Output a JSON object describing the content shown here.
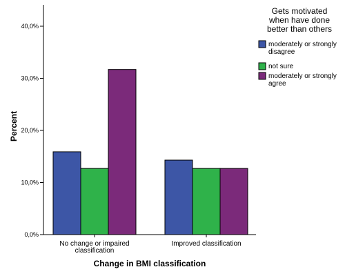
{
  "chart_data": {
    "type": "bar",
    "xlabel": "Change in BMI classification",
    "ylabel": "Percent",
    "ylim": [
      0,
      44
    ],
    "yticks": [
      {
        "value": 0,
        "label": "0,0%"
      },
      {
        "value": 10,
        "label": "10,0%"
      },
      {
        "value": 20,
        "label": "20,0%"
      },
      {
        "value": 30,
        "label": "30,0%"
      },
      {
        "value": 40,
        "label": "40,0%"
      }
    ],
    "categories": [
      [
        "No change or impaired",
        "classification"
      ],
      [
        "Improved classification"
      ]
    ],
    "legend": {
      "title": [
        "Gets motivated",
        "when have done",
        "better than others"
      ],
      "position": "right"
    },
    "series": [
      {
        "name": [
          "moderately or strongly",
          "disagree"
        ],
        "color": "#3d56a6",
        "values": [
          15.9,
          14.3
        ]
      },
      {
        "name": [
          "not sure"
        ],
        "color": "#2fb24a",
        "values": [
          12.7,
          12.7
        ]
      },
      {
        "name": [
          "moderately or strongly",
          "agree"
        ],
        "color": "#7b2a7a",
        "values": [
          31.7,
          12.7
        ]
      }
    ],
    "grid": false
  }
}
